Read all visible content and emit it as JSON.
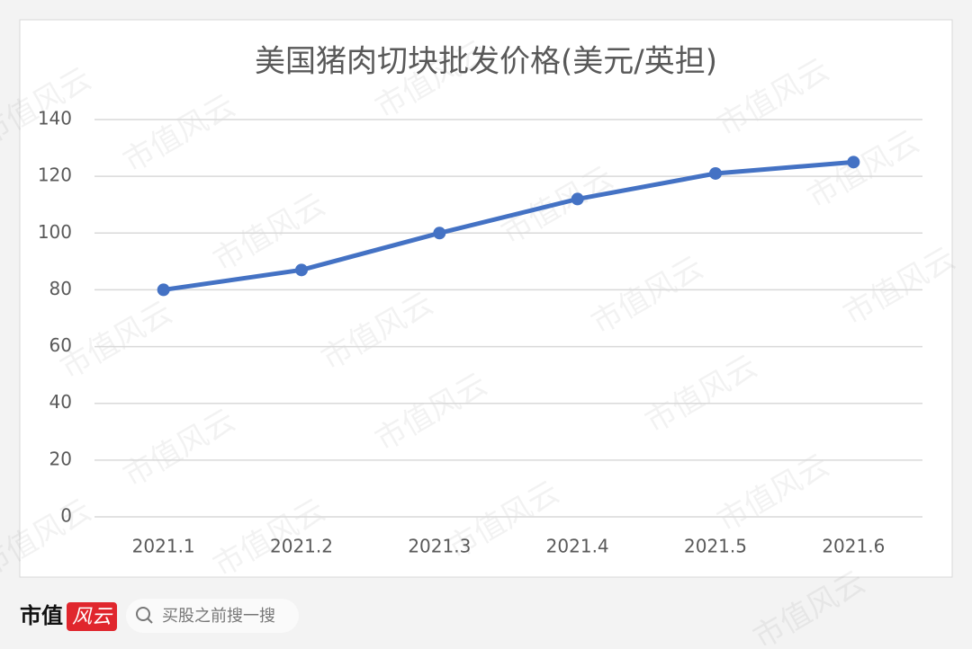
{
  "chart_data": {
    "type": "line",
    "title": "美国猪肉切块批发价格(美元/英担)",
    "categories": [
      "2021.1",
      "2021.2",
      "2021.3",
      "2021.4",
      "2021.5",
      "2021.6"
    ],
    "values": [
      80,
      87,
      100,
      112,
      121,
      125
    ],
    "color": "#4472c4",
    "ylim": [
      0,
      140
    ],
    "yticks": [
      0,
      20,
      40,
      60,
      80,
      100,
      120,
      140
    ],
    "grid": true
  },
  "footer": {
    "brand": "市值",
    "brand_logo": "风云",
    "search": "买股之前搜一搜"
  },
  "watermark": "市值风云"
}
